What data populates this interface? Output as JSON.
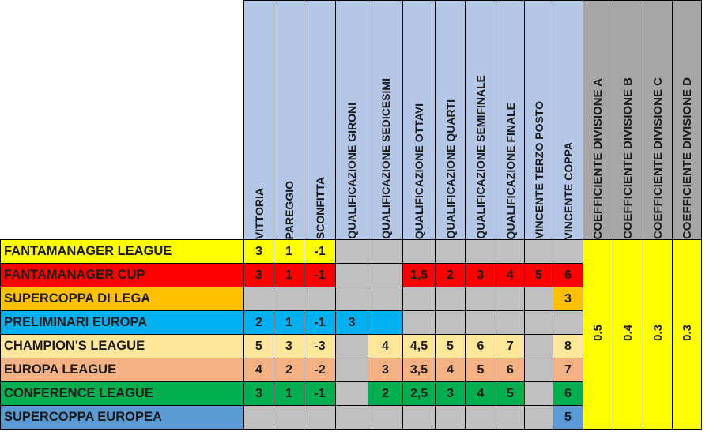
{
  "columns": [
    "VITTORIA",
    "PAREGGIO",
    "SCONFITTA",
    "QUALIFICAZIONE GIRONI",
    "QUALIFICAZIONE SEDICESIMI",
    "QUALIFICAZIONE OTTAVI",
    "QUALIFICAZIONE QUARTI",
    "QUALIFICAZIONE SEMIFINALE",
    "QUALIFICAZIONE FINALE",
    "VINCENTE TERZO POSTO",
    "VINCENTE COPPA"
  ],
  "coefficients": [
    {
      "label": "COEFFICIENTE DIVISIONE A",
      "value": "0.5"
    },
    {
      "label": "COEFFICIENTE DIVISIONE B",
      "value": "0.4"
    },
    {
      "label": "COEFFICIENTE DIVISIONE C",
      "value": "0.3"
    },
    {
      "label": "COEFFICIENTE DIVISIONE D",
      "value": "0.3"
    }
  ],
  "rows": [
    {
      "name": "FANTAMANAGER LEAGUE",
      "color": "#ffff00",
      "cells": [
        {
          "v": "3",
          "c": "#ffff00"
        },
        {
          "v": "1",
          "c": "#ffff00"
        },
        {
          "v": "-1",
          "c": "#ffff00"
        },
        {
          "v": "",
          "c": "#c0c0c0"
        },
        {
          "v": "",
          "c": "#c0c0c0"
        },
        {
          "v": "",
          "c": "#c0c0c0"
        },
        {
          "v": "",
          "c": "#c0c0c0"
        },
        {
          "v": "",
          "c": "#c0c0c0"
        },
        {
          "v": "",
          "c": "#c0c0c0"
        },
        {
          "v": "",
          "c": "#c0c0c0"
        },
        {
          "v": "",
          "c": "#c0c0c0"
        }
      ]
    },
    {
      "name": "FANTAMANAGER CUP",
      "color": "#ff0000",
      "cells": [
        {
          "v": "3",
          "c": "#ff0000"
        },
        {
          "v": "1",
          "c": "#ff0000"
        },
        {
          "v": "-1",
          "c": "#ff0000"
        },
        {
          "v": "",
          "c": "#c0c0c0"
        },
        {
          "v": "",
          "c": "#c0c0c0"
        },
        {
          "v": "1,5",
          "c": "#ff0000"
        },
        {
          "v": "2",
          "c": "#ff0000"
        },
        {
          "v": "3",
          "c": "#ff0000"
        },
        {
          "v": "4",
          "c": "#ff0000"
        },
        {
          "v": "5",
          "c": "#ff0000"
        },
        {
          "v": "6",
          "c": "#ff0000"
        }
      ]
    },
    {
      "name": "SUPERCOPPA DI LEGA",
      "color": "#ffc000",
      "cells": [
        {
          "v": "",
          "c": "#c0c0c0"
        },
        {
          "v": "",
          "c": "#c0c0c0"
        },
        {
          "v": "",
          "c": "#c0c0c0"
        },
        {
          "v": "",
          "c": "#c0c0c0"
        },
        {
          "v": "",
          "c": "#c0c0c0"
        },
        {
          "v": "",
          "c": "#c0c0c0"
        },
        {
          "v": "",
          "c": "#c0c0c0"
        },
        {
          "v": "",
          "c": "#c0c0c0"
        },
        {
          "v": "",
          "c": "#c0c0c0"
        },
        {
          "v": "",
          "c": "#c0c0c0"
        },
        {
          "v": "3",
          "c": "#ffc000"
        }
      ]
    },
    {
      "name": "PRELIMINARI EUROPA",
      "color": "#00b0f0",
      "cells": [
        {
          "v": "2",
          "c": "#00b0f0"
        },
        {
          "v": "1",
          "c": "#00b0f0"
        },
        {
          "v": "-1",
          "c": "#00b0f0"
        },
        {
          "v": "3",
          "c": "#00b0f0"
        },
        {
          "v": "",
          "c": "#00b0f0"
        },
        {
          "v": "",
          "c": "#c0c0c0"
        },
        {
          "v": "",
          "c": "#c0c0c0"
        },
        {
          "v": "",
          "c": "#c0c0c0"
        },
        {
          "v": "",
          "c": "#c0c0c0"
        },
        {
          "v": "",
          "c": "#c0c0c0"
        },
        {
          "v": "",
          "c": "#c0c0c0"
        }
      ]
    },
    {
      "name": "CHAMPION'S LEAGUE",
      "color": "#ffe699",
      "cells": [
        {
          "v": "5",
          "c": "#ffe699"
        },
        {
          "v": "3",
          "c": "#ffe699"
        },
        {
          "v": "-3",
          "c": "#ffe699"
        },
        {
          "v": "",
          "c": "#c0c0c0"
        },
        {
          "v": "4",
          "c": "#ffe699"
        },
        {
          "v": "4,5",
          "c": "#ffe699"
        },
        {
          "v": "5",
          "c": "#ffe699"
        },
        {
          "v": "6",
          "c": "#ffe699"
        },
        {
          "v": "7",
          "c": "#ffe699"
        },
        {
          "v": "",
          "c": "#c0c0c0"
        },
        {
          "v": "8",
          "c": "#ffe699"
        }
      ]
    },
    {
      "name": "EUROPA LEAGUE",
      "color": "#f4b183",
      "cells": [
        {
          "v": "4",
          "c": "#f4b183"
        },
        {
          "v": "2",
          "c": "#f4b183"
        },
        {
          "v": "-2",
          "c": "#f4b183"
        },
        {
          "v": "",
          "c": "#c0c0c0"
        },
        {
          "v": "3",
          "c": "#f4b183"
        },
        {
          "v": "3,5",
          "c": "#f4b183"
        },
        {
          "v": "4",
          "c": "#f4b183"
        },
        {
          "v": "5",
          "c": "#f4b183"
        },
        {
          "v": "6",
          "c": "#f4b183"
        },
        {
          "v": "",
          "c": "#c0c0c0"
        },
        {
          "v": "7",
          "c": "#f4b183"
        }
      ]
    },
    {
      "name": "CONFERENCE LEAGUE",
      "color": "#00b050",
      "cells": [
        {
          "v": "3",
          "c": "#00b050"
        },
        {
          "v": "1",
          "c": "#00b050"
        },
        {
          "v": "-1",
          "c": "#00b050"
        },
        {
          "v": "",
          "c": "#c0c0c0"
        },
        {
          "v": "2",
          "c": "#00b050"
        },
        {
          "v": "2,5",
          "c": "#00b050"
        },
        {
          "v": "3",
          "c": "#00b050"
        },
        {
          "v": "4",
          "c": "#00b050"
        },
        {
          "v": "5",
          "c": "#00b050"
        },
        {
          "v": "",
          "c": "#c0c0c0"
        },
        {
          "v": "6",
          "c": "#00b050"
        }
      ]
    },
    {
      "name": "SUPERCOPPA EUROPEA",
      "color": "#5b9bd5",
      "cells": [
        {
          "v": "",
          "c": "#c0c0c0"
        },
        {
          "v": "",
          "c": "#c0c0c0"
        },
        {
          "v": "",
          "c": "#c0c0c0"
        },
        {
          "v": "",
          "c": "#c0c0c0"
        },
        {
          "v": "",
          "c": "#c0c0c0"
        },
        {
          "v": "",
          "c": "#c0c0c0"
        },
        {
          "v": "",
          "c": "#c0c0c0"
        },
        {
          "v": "",
          "c": "#c0c0c0"
        },
        {
          "v": "",
          "c": "#c0c0c0"
        },
        {
          "v": "",
          "c": "#c0c0c0"
        },
        {
          "v": "5",
          "c": "#5b9bd5"
        }
      ]
    }
  ]
}
